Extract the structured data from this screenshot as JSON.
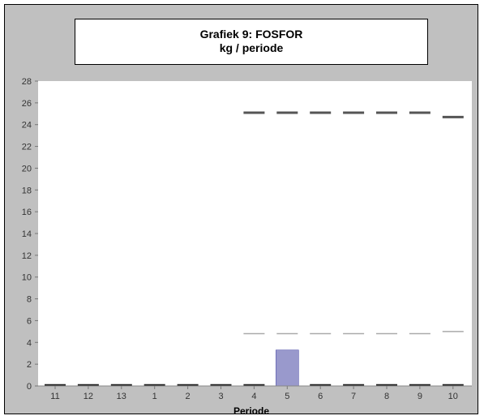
{
  "chart_data": {
    "type": "bar",
    "title": "Grafiek 9: FOSFOR",
    "subtitle": "kg / periode",
    "xlabel": "Periode",
    "ylabel": "",
    "ylim": [
      0,
      28
    ],
    "ytick_step": 2,
    "grid": false,
    "categories": [
      "11",
      "12",
      "13",
      "1",
      "2",
      "3",
      "4",
      "5",
      "6",
      "7",
      "8",
      "9",
      "10"
    ],
    "series": [
      {
        "kind": "bar",
        "color": "#9999cc",
        "values": [
          0,
          0,
          0,
          0,
          0,
          0,
          0,
          3.3,
          0,
          0,
          0,
          0,
          0
        ]
      },
      {
        "kind": "dash",
        "color": "#555555",
        "values": [
          null,
          null,
          null,
          null,
          null,
          null,
          25.1,
          25.1,
          25.1,
          25.1,
          25.1,
          25.1,
          24.7
        ]
      },
      {
        "kind": "dash",
        "color": "#aaaaaa",
        "values": [
          null,
          null,
          null,
          null,
          null,
          null,
          4.8,
          4.8,
          4.8,
          4.8,
          4.8,
          4.8,
          5.0
        ]
      }
    ]
  }
}
